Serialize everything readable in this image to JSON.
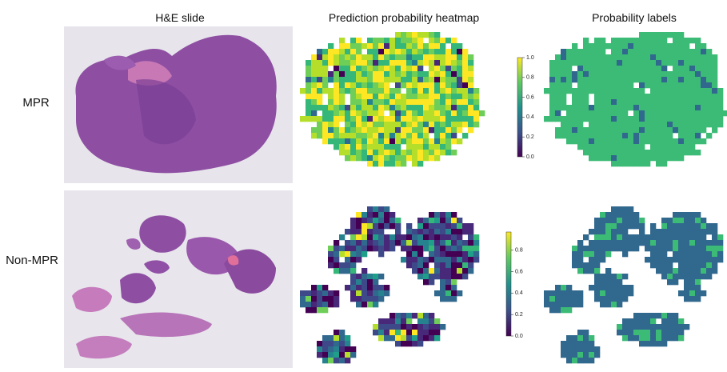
{
  "columns": [
    "H&E slide",
    "Prediction probability heatmap",
    "Probability labels"
  ],
  "rows": [
    "MPR",
    "Non-MPR"
  ],
  "colorbars": [
    {
      "lim": [
        0,
        1
      ],
      "ticks": [
        {
          "value": 0,
          "label": "0.0"
        },
        {
          "value": 0.2,
          "label": "0.2"
        },
        {
          "value": 0.4,
          "label": "0.4"
        },
        {
          "value": 0.6,
          "label": "0.6"
        },
        {
          "value": 0.8,
          "label": "0.8"
        },
        {
          "value": 1,
          "label": "1.0"
        }
      ]
    },
    {
      "lim": [
        0,
        0.97
      ],
      "ticks": [
        {
          "value": 0,
          "label": "0.0"
        },
        {
          "value": 0.2,
          "label": "0.2"
        },
        {
          "value": 0.4,
          "label": "0.4"
        },
        {
          "value": 0.6,
          "label": "0.6"
        },
        {
          "value": 0.8,
          "label": "0.8"
        }
      ]
    }
  ]
}
